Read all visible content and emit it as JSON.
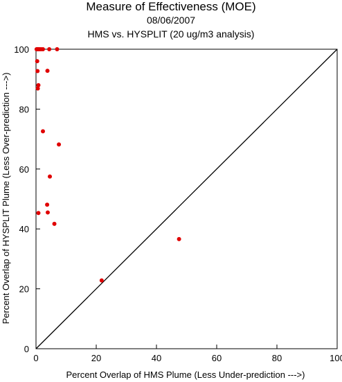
{
  "chart_data": {
    "type": "scatter",
    "title": "Measure of Effectiveness (MOE)",
    "subtitle_date": "08/06/2007",
    "subtitle_analysis": "HMS vs. HYSPLIT  (20 ug/m3 analysis)",
    "xlabel": "Percent Overlap of HMS Plume (Less Under-prediction --->)",
    "ylabel": "Percent Overlap of HYSPLIT Plume (Less Over-prediction --->)",
    "xlim": [
      0,
      100
    ],
    "ylim": [
      0,
      100
    ],
    "x_ticks": [
      0,
      20,
      40,
      60,
      80,
      100
    ],
    "y_ticks": [
      0,
      20,
      40,
      60,
      80,
      100
    ],
    "x_tick_labels": [
      "0",
      "20",
      "40",
      "60",
      "80",
      "100"
    ],
    "y_tick_labels": [
      "0",
      "20",
      "40",
      "60",
      "80",
      "100"
    ],
    "grid": false,
    "point_color": "#e00000",
    "line_color": "#000000",
    "reference_line": {
      "from": [
        0,
        0
      ],
      "to": [
        100,
        100
      ]
    },
    "points": [
      {
        "x": 0.2,
        "y": 100
      },
      {
        "x": 0.5,
        "y": 100
      },
      {
        "x": 0.8,
        "y": 100
      },
      {
        "x": 1.2,
        "y": 100
      },
      {
        "x": 1.7,
        "y": 100
      },
      {
        "x": 2.3,
        "y": 100
      },
      {
        "x": 4.4,
        "y": 100
      },
      {
        "x": 7.0,
        "y": 100
      },
      {
        "x": 0.4,
        "y": 96.0
      },
      {
        "x": 0.5,
        "y": 92.7
      },
      {
        "x": 3.8,
        "y": 92.8
      },
      {
        "x": 0.8,
        "y": 88.0
      },
      {
        "x": 0.6,
        "y": 86.9
      },
      {
        "x": 2.3,
        "y": 72.6
      },
      {
        "x": 7.6,
        "y": 68.2
      },
      {
        "x": 4.6,
        "y": 57.5
      },
      {
        "x": 3.7,
        "y": 48.1
      },
      {
        "x": 0.8,
        "y": 45.3
      },
      {
        "x": 3.9,
        "y": 45.5
      },
      {
        "x": 6.1,
        "y": 41.7
      },
      {
        "x": 47.5,
        "y": 36.6
      },
      {
        "x": 21.8,
        "y": 22.8
      }
    ]
  }
}
